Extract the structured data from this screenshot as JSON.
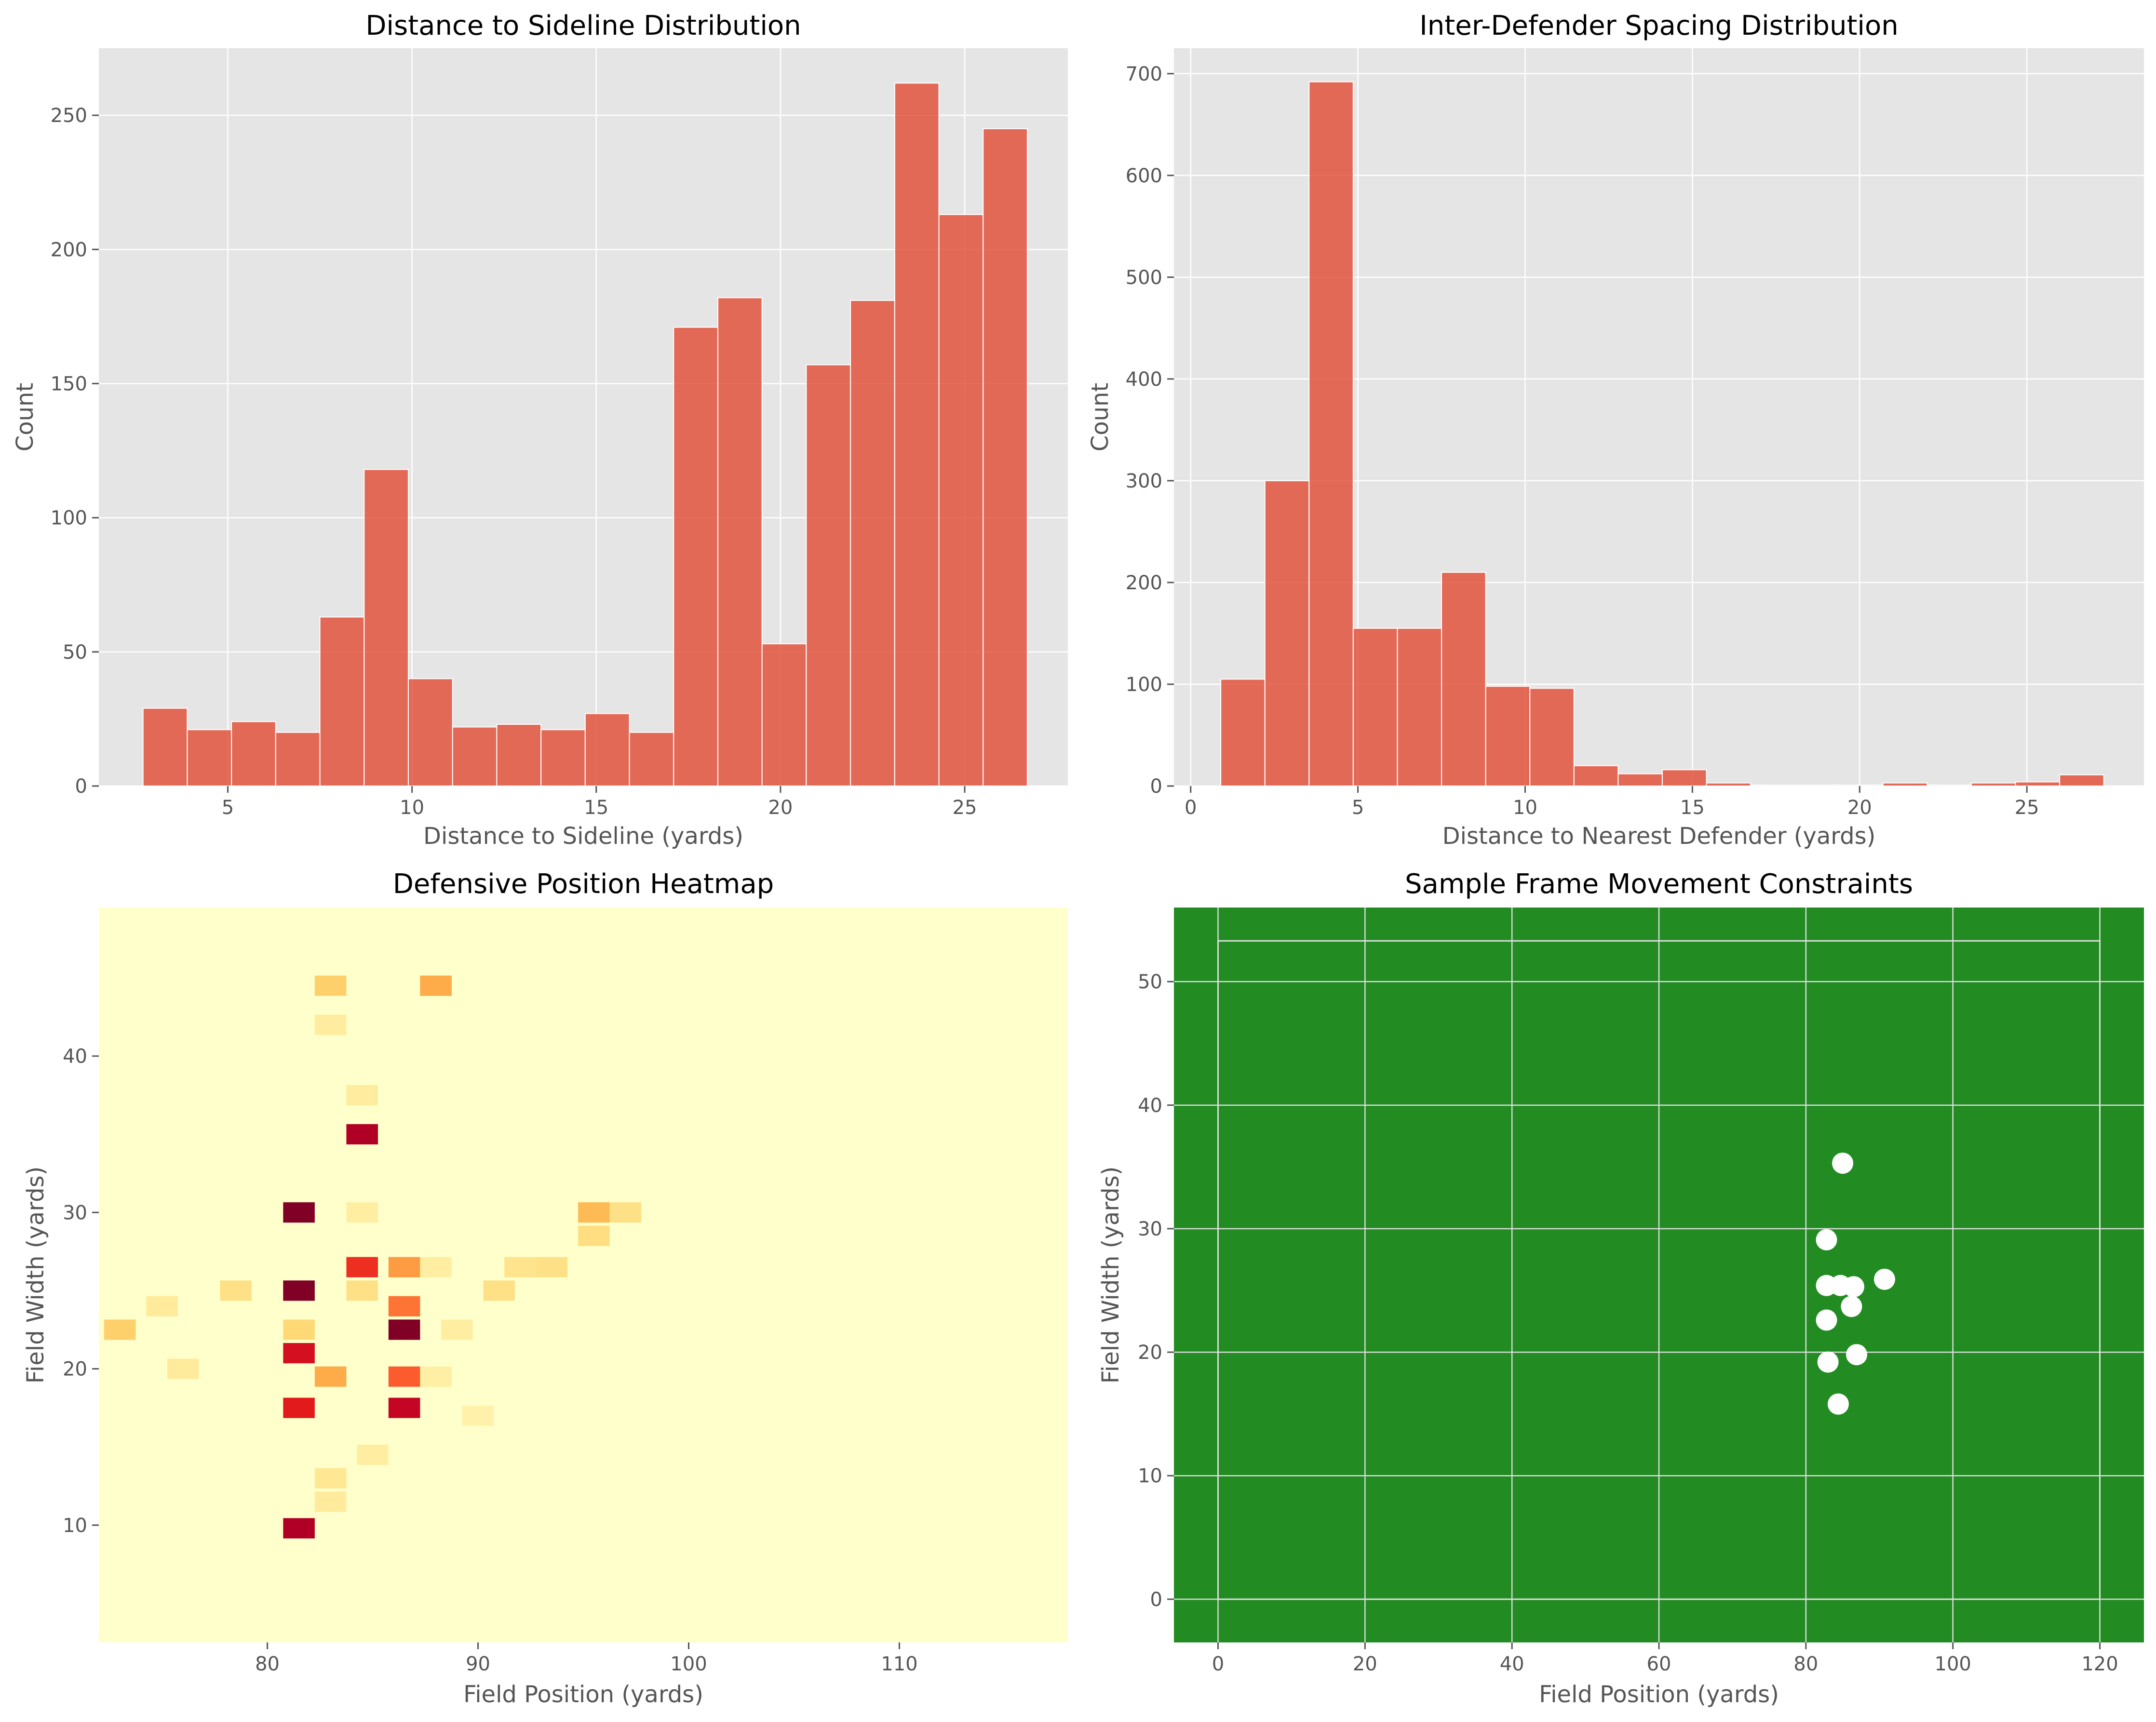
{
  "chart_data": [
    {
      "type": "bar",
      "title": "Distance to Sideline Distribution",
      "xlabel": "Distance to Sideline (yards)",
      "ylabel": "Count",
      "xlim": [
        1.5,
        27.8
      ],
      "ylim": [
        0,
        275
      ],
      "xticks": [
        5,
        10,
        15,
        20,
        25
      ],
      "yticks": [
        0,
        50,
        100,
        150,
        200,
        250
      ],
      "bin_start": 2.7,
      "bin_width": 1.2,
      "values": [
        29,
        21,
        24,
        20,
        63,
        118,
        40,
        22,
        23,
        21,
        27,
        20,
        171,
        182,
        53,
        157,
        181,
        262,
        213,
        245
      ],
      "bar_color": "#e24a33",
      "grid": true
    },
    {
      "type": "bar",
      "title": "Inter-Defender Spacing Distribution",
      "xlabel": "Distance to Nearest Defender (yards)",
      "ylabel": "Count",
      "xlim": [
        -0.5,
        28.5
      ],
      "ylim": [
        0,
        725
      ],
      "xticks": [
        0,
        5,
        10,
        15,
        20,
        25
      ],
      "yticks": [
        0,
        100,
        200,
        300,
        400,
        500,
        600,
        700
      ],
      "bin_start": 0.9,
      "bin_width": 1.32,
      "values": [
        105,
        300,
        692,
        155,
        155,
        210,
        98,
        96,
        20,
        12,
        16,
        3,
        1,
        1,
        1,
        3,
        1,
        3,
        4,
        11
      ],
      "bar_color": "#e24a33",
      "grid": true
    },
    {
      "type": "heatmap",
      "title": "Defensive Position Heatmap",
      "xlabel": "Field Position (yards)",
      "ylabel": "Field Width (yards)",
      "xlim": [
        72,
        118
      ],
      "ylim": [
        2.5,
        49.5
      ],
      "xticks": [
        80,
        90,
        100,
        110
      ],
      "yticks": [
        10,
        20,
        30,
        40
      ],
      "colormap": "YlOrRd",
      "cells": [
        {
          "x": 81.5,
          "y": 30,
          "v": 1.0
        },
        {
          "x": 81.5,
          "y": 25,
          "v": 1.0
        },
        {
          "x": 86.5,
          "y": 22.5,
          "v": 1.0
        },
        {
          "x": 84.5,
          "y": 35,
          "v": 0.9
        },
        {
          "x": 81.5,
          "y": 9.8,
          "v": 0.9
        },
        {
          "x": 81.5,
          "y": 21,
          "v": 0.8
        },
        {
          "x": 81.5,
          "y": 17.5,
          "v": 0.75
        },
        {
          "x": 86.5,
          "y": 17.5,
          "v": 0.85
        },
        {
          "x": 84.5,
          "y": 26.5,
          "v": 0.7
        },
        {
          "x": 86.5,
          "y": 19.5,
          "v": 0.6
        },
        {
          "x": 86.5,
          "y": 24,
          "v": 0.55
        },
        {
          "x": 86.5,
          "y": 26.5,
          "v": 0.45
        },
        {
          "x": 88,
          "y": 44.5,
          "v": 0.4
        },
        {
          "x": 95.5,
          "y": 30,
          "v": 0.35
        },
        {
          "x": 83,
          "y": 19.5,
          "v": 0.4
        },
        {
          "x": 83,
          "y": 44.5,
          "v": 0.28
        },
        {
          "x": 73,
          "y": 22.5,
          "v": 0.28
        },
        {
          "x": 81.5,
          "y": 22.5,
          "v": 0.25
        },
        {
          "x": 95.5,
          "y": 28.5,
          "v": 0.22
        },
        {
          "x": 97,
          "y": 30,
          "v": 0.2
        },
        {
          "x": 84.5,
          "y": 25,
          "v": 0.2
        },
        {
          "x": 93.5,
          "y": 26.5,
          "v": 0.2
        },
        {
          "x": 92,
          "y": 26.5,
          "v": 0.18
        },
        {
          "x": 91,
          "y": 25,
          "v": 0.2
        },
        {
          "x": 78.5,
          "y": 25,
          "v": 0.2
        },
        {
          "x": 83,
          "y": 13,
          "v": 0.16
        },
        {
          "x": 83,
          "y": 11.5,
          "v": 0.14
        },
        {
          "x": 84.5,
          "y": 37.5,
          "v": 0.13
        },
        {
          "x": 83,
          "y": 42,
          "v": 0.13
        },
        {
          "x": 76,
          "y": 20,
          "v": 0.14
        },
        {
          "x": 75,
          "y": 24,
          "v": 0.14
        },
        {
          "x": 84.5,
          "y": 30,
          "v": 0.12
        },
        {
          "x": 88,
          "y": 26.5,
          "v": 0.12
        },
        {
          "x": 85,
          "y": 14.5,
          "v": 0.12
        },
        {
          "x": 88,
          "y": 19.5,
          "v": 0.11
        },
        {
          "x": 89,
          "y": 22.5,
          "v": 0.12
        },
        {
          "x": 90,
          "y": 17,
          "v": 0.1
        }
      ],
      "grid": false
    },
    {
      "type": "scatter",
      "title": "Sample Frame Movement Constraints",
      "xlabel": "Field Position (yards)",
      "ylabel": "Field Width (yards)",
      "xlim": [
        -6,
        126
      ],
      "ylim": [
        -3.5,
        56
      ],
      "xticks": [
        0,
        20,
        40,
        60,
        80,
        100,
        120
      ],
      "yticks": [
        0,
        10,
        20,
        30,
        40,
        50
      ],
      "background_color": "#228b22",
      "marker_color": "#ffffff",
      "field_boundary": {
        "x": [
          0,
          120
        ],
        "y": [
          0,
          53.3
        ]
      },
      "points": [
        {
          "x": 85,
          "y": 35.3
        },
        {
          "x": 82.8,
          "y": 29.1
        },
        {
          "x": 82.8,
          "y": 25.4
        },
        {
          "x": 84.7,
          "y": 25.4
        },
        {
          "x": 86.5,
          "y": 25.3
        },
        {
          "x": 90.7,
          "y": 25.9
        },
        {
          "x": 86.2,
          "y": 23.7
        },
        {
          "x": 82.8,
          "y": 22.6
        },
        {
          "x": 86.9,
          "y": 19.8
        },
        {
          "x": 83,
          "y": 19.2
        },
        {
          "x": 84.4,
          "y": 15.8
        }
      ],
      "grid": true
    }
  ]
}
